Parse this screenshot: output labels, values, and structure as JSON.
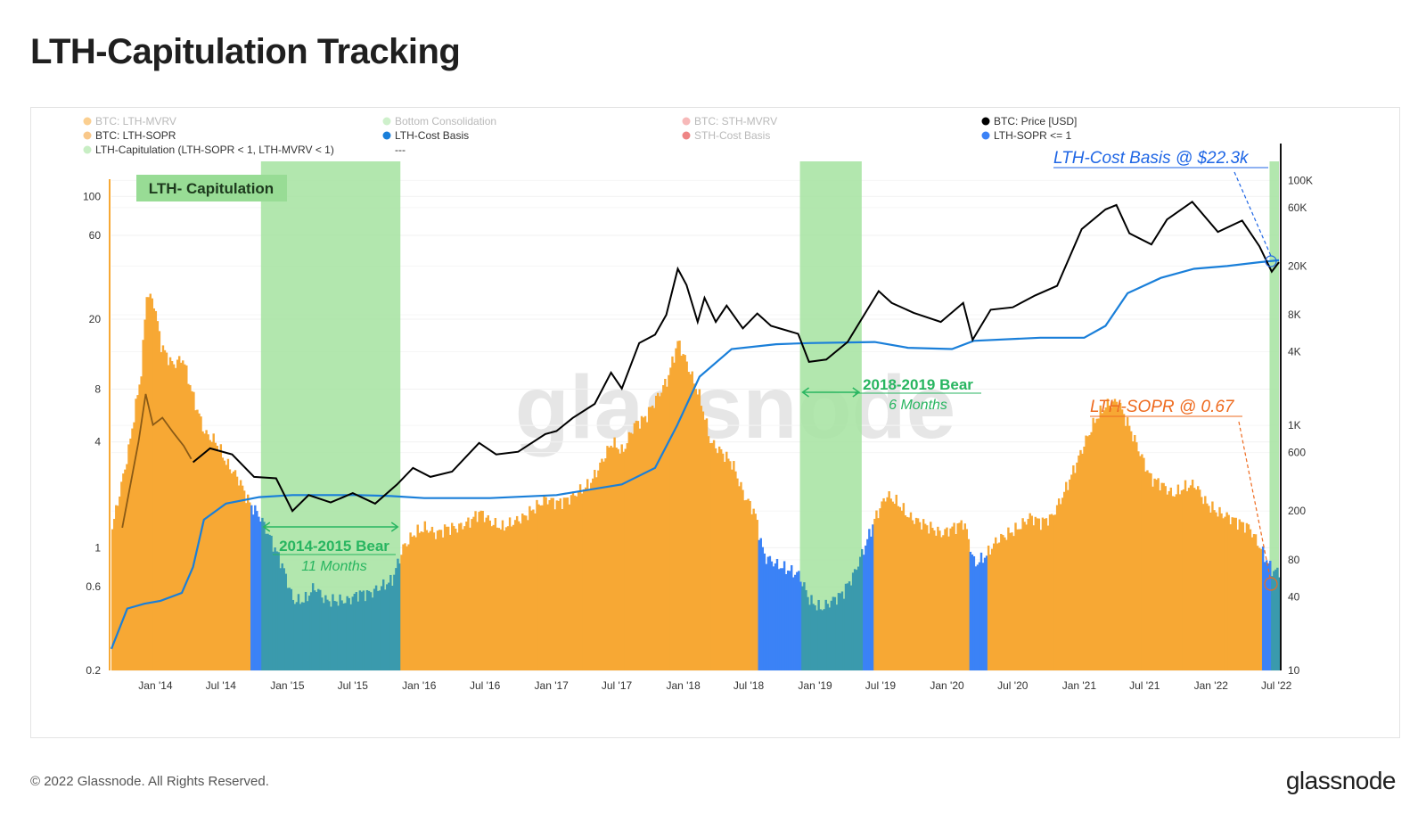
{
  "page": {
    "title": "LTH-Capitulation Tracking",
    "footer_copyright": "© 2022 Glassnode. All Rights Reserved.",
    "footer_logo": "glassnode",
    "watermark": "glassnode"
  },
  "colors": {
    "mvrv_fill": "#f7a834",
    "sopr_low_fill": "#3b82f6",
    "capitulation_fill": "#3a9aad",
    "consolidation_fill": "#a5e3a0",
    "cost_basis_line": "#1a7fd9",
    "price_line": "#000000",
    "capitulation_label_bg": "#98dc95",
    "bear_label": "#28b560",
    "cost_basis_annotation": "#1f66e5",
    "sopr_annotation": "#ee6a1e",
    "left_axis_line": "#f7a834"
  },
  "legend": [
    {
      "label": "BTC: LTH-MVRV",
      "color": "#f7a834",
      "muted": true
    },
    {
      "label": "Bottom Consolidation",
      "color": "#a5e3a0",
      "muted": true
    },
    {
      "label": "BTC: STH-MVRV",
      "color": "#f08080",
      "muted": true
    },
    {
      "label": "BTC: Price [USD]",
      "color": "#000000",
      "muted": false
    },
    {
      "label": "BTC: LTH-SOPR",
      "color": "#f9c88a",
      "muted": false
    },
    {
      "label": "LTH-Cost Basis",
      "color": "#1a7fd9",
      "muted": false
    },
    {
      "label": "STH-Cost Basis",
      "color": "#e02020",
      "muted": true
    },
    {
      "label": "LTH-SOPR <= 1",
      "color": "#3b82f6",
      "muted": false
    },
    {
      "label": "LTH-Capitulation (LTH-SOPR < 1, LTH-MVRV < 1)",
      "color": "#c8eec4",
      "muted": false
    },
    {
      "label": "---",
      "color": "",
      "muted": false
    }
  ],
  "annotations": {
    "capitulation_box": "LTH- Capitulation",
    "bear_2014_title": "2014-2015 Bear",
    "bear_2014_sub": "11 Months",
    "bear_2018_title": "2018-2019 Bear",
    "bear_2018_sub": "6 Months",
    "cost_basis": "LTH-Cost Basis @ $22.3k",
    "sopr": "LTH-SOPR @ 0.67"
  },
  "chart_data": {
    "type": "line",
    "x_ticks": [
      "Jan '14",
      "Jul '14",
      "Jan '15",
      "Jul '15",
      "Jan '16",
      "Jul '16",
      "Jan '17",
      "Jul '17",
      "Jan '18",
      "Jul '18",
      "Jan '19",
      "Jul '19",
      "Jan '20",
      "Jul '20",
      "Jan '21",
      "Jul '21",
      "Jan '22",
      "Jul '22"
    ],
    "x_range": [
      "2013-09-01",
      "2022-07-08"
    ],
    "left_axis": {
      "scale": "log",
      "ticks": [
        100,
        60,
        20,
        8,
        4,
        1,
        0.6,
        0.2
      ],
      "range": [
        0.2,
        200
      ]
    },
    "right_axis": {
      "scale": "log",
      "ticks": [
        "100K",
        "60K",
        "20K",
        "8K",
        "4K",
        "1K",
        "600",
        "200",
        "80",
        "40",
        "10"
      ],
      "tick_values": [
        100000,
        60000,
        20000,
        8000,
        4000,
        1000,
        600,
        200,
        80,
        40,
        10
      ],
      "range": [
        10,
        200000
      ]
    },
    "series": [
      {
        "name": "BTC: LTH-MVRV",
        "axis": "left",
        "style": "area",
        "points": [
          [
            "2013-09-01",
            1.3
          ],
          [
            "2013-10-15",
            3.5
          ],
          [
            "2013-11-20",
            10
          ],
          [
            "2013-12-05",
            28
          ],
          [
            "2013-12-25",
            25
          ],
          [
            "2014-01-15",
            14
          ],
          [
            "2014-02-15",
            11
          ],
          [
            "2014-03-15",
            12
          ],
          [
            "2014-04-15",
            7
          ],
          [
            "2014-05-15",
            4.5
          ],
          [
            "2014-06-15",
            4
          ],
          [
            "2014-07-15",
            3
          ],
          [
            "2014-08-15",
            2.5
          ],
          [
            "2014-09-15",
            1.8
          ],
          [
            "2014-10-15",
            1.5
          ],
          [
            "2014-11-15",
            1.1
          ],
          [
            "2014-12-15",
            0.8
          ],
          [
            "2015-01-15",
            0.5
          ],
          [
            "2015-02-15",
            0.5
          ],
          [
            "2015-03-15",
            0.6
          ],
          [
            "2015-04-15",
            0.5
          ],
          [
            "2015-05-15",
            0.5
          ],
          [
            "2015-06-15",
            0.5
          ],
          [
            "2015-07-15",
            0.55
          ],
          [
            "2015-08-15",
            0.55
          ],
          [
            "2015-09-15",
            0.6
          ],
          [
            "2015-10-15",
            0.65
          ],
          [
            "2015-11-15",
            1.0
          ],
          [
            "2015-12-15",
            1.2
          ],
          [
            "2016-01-15",
            1.3
          ],
          [
            "2016-02-15",
            1.2
          ],
          [
            "2016-03-15",
            1.3
          ],
          [
            "2016-04-15",
            1.3
          ],
          [
            "2016-05-15",
            1.4
          ],
          [
            "2016-06-15",
            1.6
          ],
          [
            "2016-07-15",
            1.4
          ],
          [
            "2016-08-15",
            1.3
          ],
          [
            "2016-09-15",
            1.4
          ],
          [
            "2016-10-15",
            1.5
          ],
          [
            "2016-11-15",
            1.7
          ],
          [
            "2016-12-15",
            1.9
          ],
          [
            "2017-01-15",
            1.8
          ],
          [
            "2017-02-15",
            1.9
          ],
          [
            "2017-03-15",
            2.1
          ],
          [
            "2017-04-15",
            2.3
          ],
          [
            "2017-05-15",
            3.0
          ],
          [
            "2017-06-15",
            4.0
          ],
          [
            "2017-07-15",
            3.5
          ],
          [
            "2017-08-15",
            5.0
          ],
          [
            "2017-09-15",
            5.5
          ],
          [
            "2017-10-15",
            7.0
          ],
          [
            "2017-11-15",
            9.0
          ],
          [
            "2017-12-15",
            15
          ],
          [
            "2018-01-10",
            11
          ],
          [
            "2018-02-15",
            7
          ],
          [
            "2018-03-15",
            4
          ],
          [
            "2018-04-15",
            3.5
          ],
          [
            "2018-05-15",
            3.0
          ],
          [
            "2018-06-15",
            2.0
          ],
          [
            "2018-07-15",
            1.6
          ],
          [
            "2018-08-10",
            0.9
          ],
          [
            "2018-09-15",
            0.8
          ],
          [
            "2018-10-15",
            0.75
          ],
          [
            "2018-11-15",
            0.7
          ],
          [
            "2018-12-15",
            0.5
          ],
          [
            "2019-01-15",
            0.45
          ],
          [
            "2019-02-15",
            0.5
          ],
          [
            "2019-03-15",
            0.55
          ],
          [
            "2019-04-15",
            0.7
          ],
          [
            "2019-05-15",
            1.0
          ],
          [
            "2019-06-15",
            1.5
          ],
          [
            "2019-07-15",
            2.0
          ],
          [
            "2019-08-15",
            1.8
          ],
          [
            "2019-09-15",
            1.5
          ],
          [
            "2019-10-15",
            1.4
          ],
          [
            "2019-11-15",
            1.3
          ],
          [
            "2019-12-15",
            1.2
          ],
          [
            "2020-01-15",
            1.3
          ],
          [
            "2020-02-15",
            1.4
          ],
          [
            "2020-03-15",
            0.8
          ],
          [
            "2020-04-15",
            0.9
          ],
          [
            "2020-05-15",
            1.1
          ],
          [
            "2020-06-15",
            1.2
          ],
          [
            "2020-07-15",
            1.3
          ],
          [
            "2020-08-15",
            1.5
          ],
          [
            "2020-09-15",
            1.4
          ],
          [
            "2020-10-15",
            1.5
          ],
          [
            "2020-11-15",
            2.0
          ],
          [
            "2020-12-15",
            2.8
          ],
          [
            "2021-01-15",
            4.0
          ],
          [
            "2021-02-15",
            5.5
          ],
          [
            "2021-03-15",
            6.5
          ],
          [
            "2021-04-15",
            6.8
          ],
          [
            "2021-05-15",
            5.0
          ],
          [
            "2021-06-15",
            3.5
          ],
          [
            "2021-07-15",
            2.5
          ],
          [
            "2021-08-15",
            2.3
          ],
          [
            "2021-09-15",
            2.0
          ],
          [
            "2021-10-15",
            2.2
          ],
          [
            "2021-11-15",
            2.3
          ],
          [
            "2021-12-15",
            1.8
          ],
          [
            "2022-01-15",
            1.6
          ],
          [
            "2022-02-15",
            1.5
          ],
          [
            "2022-03-15",
            1.4
          ],
          [
            "2022-04-15",
            1.3
          ],
          [
            "2022-05-15",
            1.0
          ],
          [
            "2022-06-15",
            0.75
          ],
          [
            "2022-07-08",
            0.72
          ]
        ]
      },
      {
        "name": "BTC: LTH-SOPR",
        "axis": "left",
        "style": "line",
        "points": [
          [
            "2013-10-01",
            1.3
          ],
          [
            "2013-11-15",
            4
          ],
          [
            "2013-12-05",
            7.5
          ],
          [
            "2013-12-25",
            5
          ],
          [
            "2014-01-20",
            5.5
          ],
          [
            "2014-02-20",
            4.5
          ],
          [
            "2014-03-20",
            3.8
          ],
          [
            "2014-04-10",
            3.2
          ]
        ]
      },
      {
        "name": "LTH-Cost Basis",
        "axis": "right",
        "style": "line",
        "points": [
          [
            "2013-09-01",
            15
          ],
          [
            "2013-10-15",
            32
          ],
          [
            "2013-12-01",
            35
          ],
          [
            "2014-01-15",
            37
          ],
          [
            "2014-03-15",
            43
          ],
          [
            "2014-04-15",
            70
          ],
          [
            "2014-05-15",
            170
          ],
          [
            "2014-07-15",
            230
          ],
          [
            "2014-10-15",
            260
          ],
          [
            "2015-01-15",
            270
          ],
          [
            "2015-07-15",
            270
          ],
          [
            "2015-10-15",
            265
          ],
          [
            "2016-01-15",
            255
          ],
          [
            "2016-07-15",
            255
          ],
          [
            "2017-01-15",
            270
          ],
          [
            "2017-07-15",
            330
          ],
          [
            "2017-10-15",
            450
          ],
          [
            "2017-12-15",
            1000
          ],
          [
            "2018-02-15",
            2500
          ],
          [
            "2018-05-15",
            4200
          ],
          [
            "2018-09-15",
            4600
          ],
          [
            "2018-12-15",
            4700
          ],
          [
            "2019-06-15",
            4800
          ],
          [
            "2019-09-15",
            4300
          ],
          [
            "2020-01-15",
            4200
          ],
          [
            "2020-03-15",
            4900
          ],
          [
            "2020-09-15",
            5200
          ],
          [
            "2021-01-15",
            5200
          ],
          [
            "2021-03-15",
            6500
          ],
          [
            "2021-05-15",
            12000
          ],
          [
            "2021-08-15",
            16000
          ],
          [
            "2021-11-15",
            19000
          ],
          [
            "2022-02-15",
            20000
          ],
          [
            "2022-05-15",
            21500
          ],
          [
            "2022-07-08",
            22300
          ]
        ]
      },
      {
        "name": "BTC: Price [USD]",
        "axis": "right",
        "style": "line",
        "points": [
          [
            "2014-04-15",
            500
          ],
          [
            "2014-06-01",
            650
          ],
          [
            "2014-08-01",
            580
          ],
          [
            "2014-10-01",
            380
          ],
          [
            "2014-12-01",
            370
          ],
          [
            "2015-01-15",
            200
          ],
          [
            "2015-03-01",
            270
          ],
          [
            "2015-05-01",
            235
          ],
          [
            "2015-07-01",
            280
          ],
          [
            "2015-09-01",
            230
          ],
          [
            "2015-11-01",
            330
          ],
          [
            "2015-12-15",
            450
          ],
          [
            "2016-02-01",
            380
          ],
          [
            "2016-04-01",
            420
          ],
          [
            "2016-06-15",
            720
          ],
          [
            "2016-08-01",
            580
          ],
          [
            "2016-10-01",
            610
          ],
          [
            "2016-12-15",
            850
          ],
          [
            "2017-01-15",
            900
          ],
          [
            "2017-03-01",
            1150
          ],
          [
            "2017-05-01",
            1500
          ],
          [
            "2017-06-15",
            2700
          ],
          [
            "2017-07-15",
            2000
          ],
          [
            "2017-09-01",
            4700
          ],
          [
            "2017-10-15",
            5500
          ],
          [
            "2017-11-15",
            8000
          ],
          [
            "2017-12-17",
            19000
          ],
          [
            "2018-01-10",
            14000
          ],
          [
            "2018-02-10",
            7000
          ],
          [
            "2018-03-01",
            11000
          ],
          [
            "2018-04-01",
            7000
          ],
          [
            "2018-05-01",
            9500
          ],
          [
            "2018-06-15",
            6200
          ],
          [
            "2018-07-25",
            8200
          ],
          [
            "2018-09-01",
            6500
          ],
          [
            "2018-11-15",
            5600
          ],
          [
            "2018-12-15",
            3300
          ],
          [
            "2019-02-01",
            3450
          ],
          [
            "2019-04-01",
            4800
          ],
          [
            "2019-06-26",
            12500
          ],
          [
            "2019-08-01",
            10000
          ],
          [
            "2019-10-01",
            8300
          ],
          [
            "2019-12-15",
            7000
          ],
          [
            "2020-02-15",
            10000
          ],
          [
            "2020-03-12",
            5000
          ],
          [
            "2020-05-01",
            8800
          ],
          [
            "2020-07-01",
            9200
          ],
          [
            "2020-09-01",
            11500
          ],
          [
            "2020-11-01",
            13800
          ],
          [
            "2021-01-08",
            40000
          ],
          [
            "2021-03-15",
            58000
          ],
          [
            "2021-04-14",
            63000
          ],
          [
            "2021-05-20",
            37000
          ],
          [
            "2021-07-20",
            30000
          ],
          [
            "2021-09-01",
            48000
          ],
          [
            "2021-11-10",
            67000
          ],
          [
            "2022-01-20",
            38000
          ],
          [
            "2022-03-28",
            47000
          ],
          [
            "2022-05-15",
            29000
          ],
          [
            "2022-06-18",
            18000
          ],
          [
            "2022-07-08",
            21500
          ]
        ]
      }
    ],
    "shaded_regions": [
      {
        "type": "capitulation",
        "start": "2014-10-20",
        "end": "2015-11-10"
      },
      {
        "type": "sopr_low",
        "start": "2014-09-20",
        "end": "2014-10-20"
      },
      {
        "type": "sopr_low",
        "start": "2018-07-25",
        "end": "2018-11-20"
      },
      {
        "type": "capitulation",
        "start": "2018-11-20",
        "end": "2019-05-10"
      },
      {
        "type": "sopr_low",
        "start": "2019-05-10",
        "end": "2019-06-10"
      },
      {
        "type": "sopr_low",
        "start": "2020-03-01",
        "end": "2020-04-20"
      },
      {
        "type": "sopr_low",
        "start": "2022-05-20",
        "end": "2022-06-12"
      },
      {
        "type": "capitulation",
        "start": "2022-06-12",
        "end": "2022-07-08"
      }
    ]
  }
}
